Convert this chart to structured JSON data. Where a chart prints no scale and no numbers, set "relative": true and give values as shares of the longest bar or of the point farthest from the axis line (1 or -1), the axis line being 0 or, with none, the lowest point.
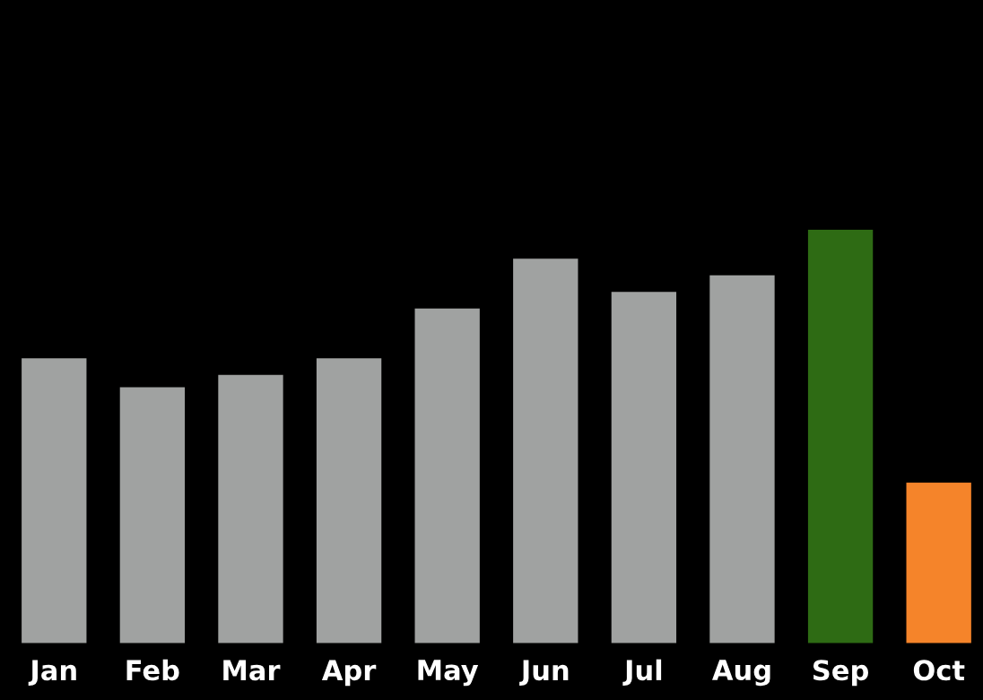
{
  "chart_data": {
    "type": "bar",
    "relative": true,
    "categories": [
      "Jan",
      "Feb",
      "Mar",
      "Apr",
      "May",
      "Jun",
      "Jul",
      "Aug",
      "Sep",
      "Oct"
    ],
    "values": [
      0.69,
      0.62,
      0.65,
      0.69,
      0.81,
      0.93,
      0.85,
      0.89,
      1,
      0.39
    ],
    "colors": [
      "#a0a2a1",
      "#a0a2a1",
      "#a0a2a1",
      "#a0a2a1",
      "#a0a2a1",
      "#a0a2a1",
      "#a0a2a1",
      "#a0a2a1",
      "#2e6b14",
      "#f5842a"
    ],
    "grid": false,
    "legend": false
  }
}
